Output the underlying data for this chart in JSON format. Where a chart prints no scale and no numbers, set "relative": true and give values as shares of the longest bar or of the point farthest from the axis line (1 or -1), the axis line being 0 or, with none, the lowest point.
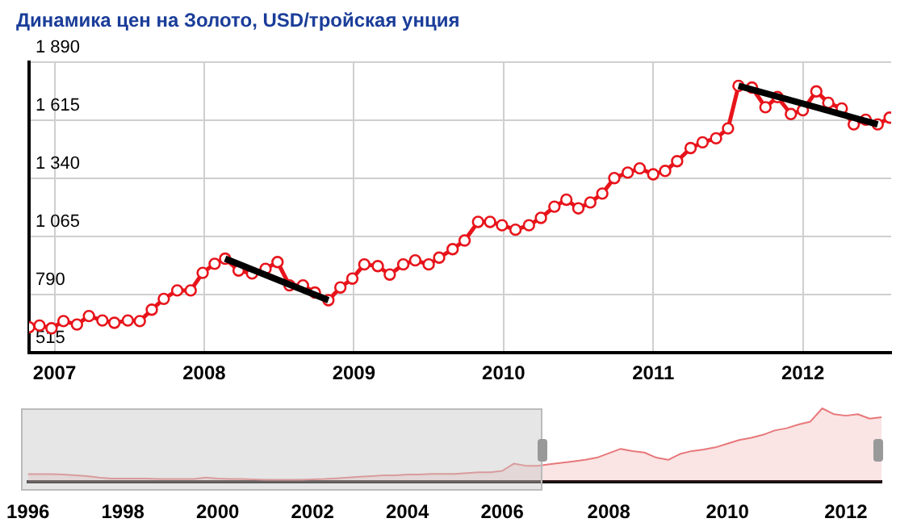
{
  "chart_data": [
    {
      "type": "line",
      "title": "Динамика цен на Золото, USD/тройская унция",
      "x": [
        2006.83,
        2006.9,
        2006.98,
        2007.06,
        2007.15,
        2007.23,
        2007.32,
        2007.4,
        2007.49,
        2007.57,
        2007.65,
        2007.73,
        2007.82,
        2007.91,
        2007.99,
        2008.07,
        2008.14,
        2008.23,
        2008.32,
        2008.41,
        2008.49,
        2008.57,
        2008.66,
        2008.74,
        2008.83,
        2008.91,
        2008.99,
        2009.07,
        2009.16,
        2009.24,
        2009.33,
        2009.41,
        2009.5,
        2009.57,
        2009.66,
        2009.74,
        2009.83,
        2009.91,
        2009.99,
        2010.08,
        2010.17,
        2010.25,
        2010.34,
        2010.42,
        2010.5,
        2010.58,
        2010.66,
        2010.74,
        2010.83,
        2010.91,
        2011.0,
        2011.08,
        2011.16,
        2011.25,
        2011.33,
        2011.42,
        2011.5,
        2011.57,
        2011.66,
        2011.75,
        2011.83,
        2011.92,
        2012.0,
        2012.09,
        2012.17,
        2012.26,
        2012.34,
        2012.42,
        2012.5,
        2012.58
      ],
      "series": [
        {
          "color": "#e8141b",
          "values": [
            636,
            644,
            631,
            665,
            649,
            689,
            668,
            657,
            668,
            665,
            719,
            770,
            810,
            810,
            893,
            936,
            960,
            904,
            890,
            912,
            944,
            834,
            834,
            800,
            764,
            824,
            866,
            933,
            925,
            885,
            933,
            952,
            933,
            965,
            1005,
            1046,
            1134,
            1134,
            1118,
            1097,
            1118,
            1153,
            1206,
            1239,
            1198,
            1226,
            1268,
            1341,
            1367,
            1387,
            1359,
            1375,
            1421,
            1483,
            1510,
            1529,
            1576,
            1777,
            1769,
            1676,
            1724,
            1644,
            1662,
            1751,
            1697,
            1670,
            1595,
            1617,
            1595,
            1627
          ]
        },
        {
          "color": "#000000",
          "marker": "none",
          "x": [
            2008.14,
            2008.83
          ],
          "values": [
            960,
            764
          ]
        },
        {
          "color": "#000000",
          "marker": "none",
          "x": [
            2011.57,
            2012.5
          ],
          "values": [
            1777,
            1595
          ]
        }
      ],
      "xlim": [
        2006.83,
        2012.59
      ],
      "xticks": [
        2007,
        2008,
        2009,
        2010,
        2011,
        2012
      ],
      "ylim": [
        515,
        1890
      ],
      "yticks": [
        515,
        790,
        {
          "value": 1065,
          "label": "1 065"
        },
        {
          "value": 1340,
          "label": "1 340"
        },
        {
          "value": 1615,
          "label": "1 615"
        },
        {
          "value": 1890,
          "label": "1 890"
        }
      ],
      "grid": true,
      "legend": false,
      "marker": "circle",
      "line_style": "solid"
    },
    {
      "type": "area",
      "relative": true,
      "categories": [
        "1996",
        null,
        null,
        null,
        null,
        null,
        null,
        null,
        "1998",
        null,
        null,
        null,
        null,
        null,
        null,
        null,
        "2000",
        null,
        null,
        null,
        null,
        null,
        null,
        null,
        "2002",
        null,
        null,
        null,
        null,
        null,
        null,
        null,
        "2004",
        null,
        null,
        null,
        null,
        null,
        null,
        null,
        "2006",
        null,
        null,
        null,
        null,
        null,
        null,
        null,
        null,
        "2008",
        null,
        null,
        null,
        null,
        null,
        null,
        null,
        null,
        null,
        "2010",
        null,
        null,
        null,
        null,
        null,
        null,
        null,
        null,
        null,
        "2012",
        null,
        null,
        null
      ],
      "color": "#e8787a",
      "values": [
        0.106,
        0.106,
        0.106,
        0.1,
        0.09,
        0.08,
        0.06,
        0.045,
        0.045,
        0.045,
        0.045,
        0.04,
        0.04,
        0.04,
        0.04,
        0.06,
        0.045,
        0.04,
        0.04,
        0.035,
        0.03,
        0.03,
        0.03,
        0.03,
        0.035,
        0.04,
        0.05,
        0.06,
        0.07,
        0.08,
        0.09,
        0.09,
        0.1,
        0.1,
        0.11,
        0.11,
        0.11,
        0.12,
        0.13,
        0.13,
        0.15,
        0.25,
        0.22,
        0.22,
        0.24,
        0.26,
        0.28,
        0.3,
        0.33,
        0.39,
        0.45,
        0.42,
        0.4,
        0.33,
        0.3,
        0.38,
        0.42,
        0.44,
        0.47,
        0.52,
        0.57,
        0.6,
        0.64,
        0.7,
        0.73,
        0.78,
        0.82,
        1,
        0.92,
        0.9,
        0.92,
        0.86,
        0.88
      ],
      "grid": false,
      "legend": false
    }
  ]
}
